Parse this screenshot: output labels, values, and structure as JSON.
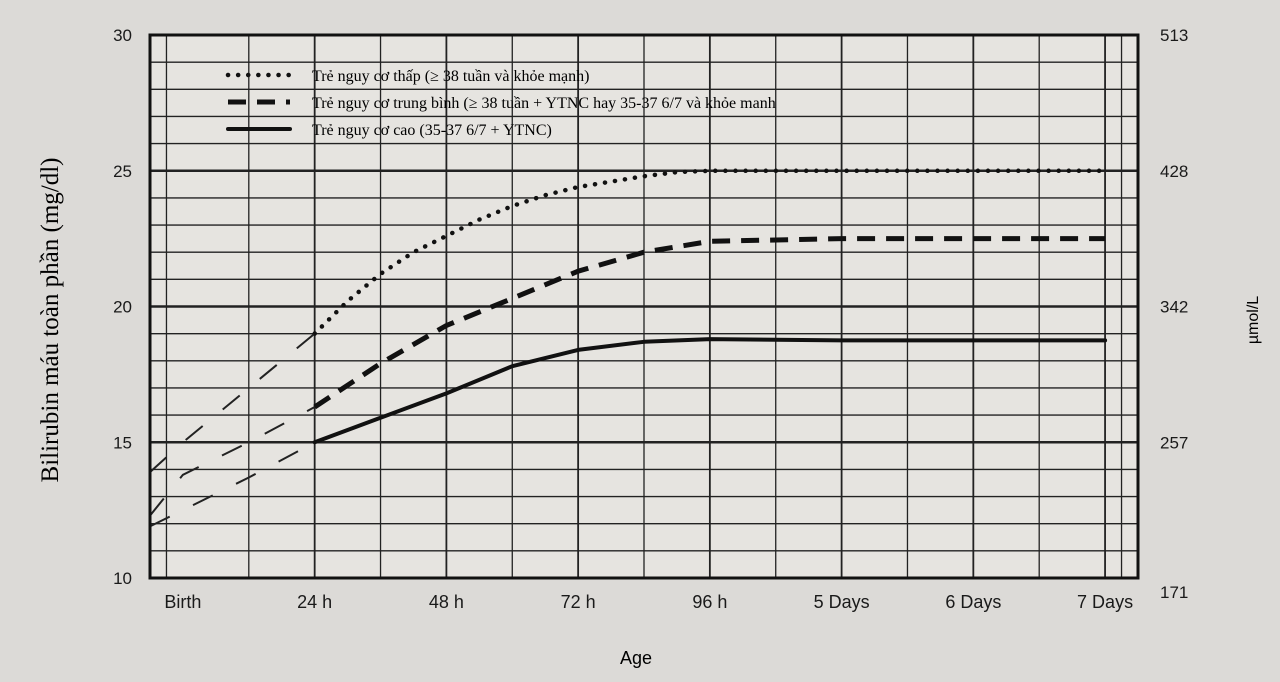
{
  "chart_data": {
    "type": "line",
    "xlabel": "Age",
    "ylabel": "Bilirubin máu toàn phần (mg/dl)",
    "y2label": "µmol/L",
    "x_ticks": [
      "Birth",
      "24 h",
      "48 h",
      "72 h",
      "96 h",
      "5 Days",
      "6 Days",
      "7 Days"
    ],
    "x_tick_hours": [
      0,
      24,
      48,
      72,
      96,
      120,
      144,
      168
    ],
    "xlim_hours": [
      -6,
      174
    ],
    "ylim": [
      10,
      30
    ],
    "y_ticks": [
      10,
      15,
      20,
      25,
      30
    ],
    "y2_ticks": [
      "171",
      "257",
      "342",
      "428",
      "513"
    ],
    "grid": true,
    "legend_position": "top-left",
    "series": [
      {
        "name": "Trẻ nguy cơ thấp (≥ 38 tuần và khỏe mạnh)",
        "style": "dotted",
        "x": [
          24,
          30,
          36,
          42,
          48,
          54,
          60,
          66,
          72,
          78,
          84,
          90,
          96,
          120,
          144,
          168
        ],
        "y": [
          19.0,
          20.2,
          21.2,
          22.0,
          22.6,
          23.2,
          23.7,
          24.1,
          24.4,
          24.6,
          24.8,
          24.95,
          25.0,
          25.0,
          25.0,
          25.0
        ],
        "pre_x": [
          -6,
          0,
          12,
          24
        ],
        "pre_y": [
          13.9,
          15.0,
          17.0,
          19.0
        ]
      },
      {
        "name": "Trẻ nguy cơ trung bình (≥ 38 tuần + YTNC hay 35-37 6/7 và khỏe manh",
        "style": "dashed",
        "x": [
          24,
          36,
          48,
          60,
          72,
          84,
          96,
          120,
          144,
          168
        ],
        "y": [
          16.3,
          17.9,
          19.3,
          20.3,
          21.3,
          22.0,
          22.4,
          22.5,
          22.5,
          22.5
        ],
        "pre_x": [
          -6,
          0,
          12,
          24
        ],
        "pre_y": [
          12.3,
          13.8,
          15.0,
          16.3
        ]
      },
      {
        "name": "Trẻ nguy cơ cao (35-37 6/7 + YTNC)",
        "style": "solid",
        "x": [
          24,
          36,
          48,
          60,
          72,
          84,
          96,
          120,
          144,
          168
        ],
        "y": [
          15.0,
          15.9,
          16.8,
          17.8,
          18.4,
          18.7,
          18.8,
          18.75,
          18.75,
          18.75
        ],
        "pre_x": [
          -6,
          0,
          12,
          24
        ],
        "pre_y": [
          11.9,
          12.5,
          13.7,
          15.0
        ]
      }
    ]
  }
}
